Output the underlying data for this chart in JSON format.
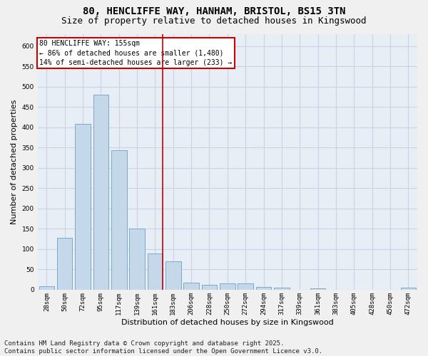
{
  "title_line1": "80, HENCLIFFE WAY, HANHAM, BRISTOL, BS15 3TN",
  "title_line2": "Size of property relative to detached houses in Kingswood",
  "xlabel": "Distribution of detached houses by size in Kingswood",
  "ylabel": "Number of detached properties",
  "bar_color": "#c5d8ea",
  "bar_edge_color": "#7aaaca",
  "grid_color": "#c8d4e4",
  "background_color": "#e8eef6",
  "fig_background": "#f0f0f0",
  "categories": [
    "28sqm",
    "50sqm",
    "72sqm",
    "95sqm",
    "117sqm",
    "139sqm",
    "161sqm",
    "183sqm",
    "206sqm",
    "228sqm",
    "250sqm",
    "272sqm",
    "294sqm",
    "317sqm",
    "339sqm",
    "361sqm",
    "383sqm",
    "405sqm",
    "428sqm",
    "450sqm",
    "472sqm"
  ],
  "values": [
    8,
    128,
    408,
    480,
    343,
    150,
    90,
    70,
    18,
    13,
    15,
    15,
    7,
    5,
    0,
    3,
    0,
    0,
    0,
    0,
    5
  ],
  "vline_index": 6,
  "vline_color": "#cc0000",
  "annotation_text_line1": "80 HENCLIFFE WAY: 155sqm",
  "annotation_text_line2": "← 86% of detached houses are smaller (1,480)",
  "annotation_text_line3": "14% of semi-detached houses are larger (233) →",
  "annotation_box_color": "#ffffff",
  "annotation_box_edge_color": "#cc0000",
  "ylim": [
    0,
    630
  ],
  "yticks": [
    0,
    50,
    100,
    150,
    200,
    250,
    300,
    350,
    400,
    450,
    500,
    550,
    600
  ],
  "footnote": "Contains HM Land Registry data © Crown copyright and database right 2025.\nContains public sector information licensed under the Open Government Licence v3.0.",
  "footnote_fontsize": 6.5,
  "title_fontsize1": 10,
  "title_fontsize2": 9,
  "annotation_fontsize": 7,
  "ylabel_fontsize": 8,
  "xlabel_fontsize": 8,
  "tick_fontsize": 6.5
}
